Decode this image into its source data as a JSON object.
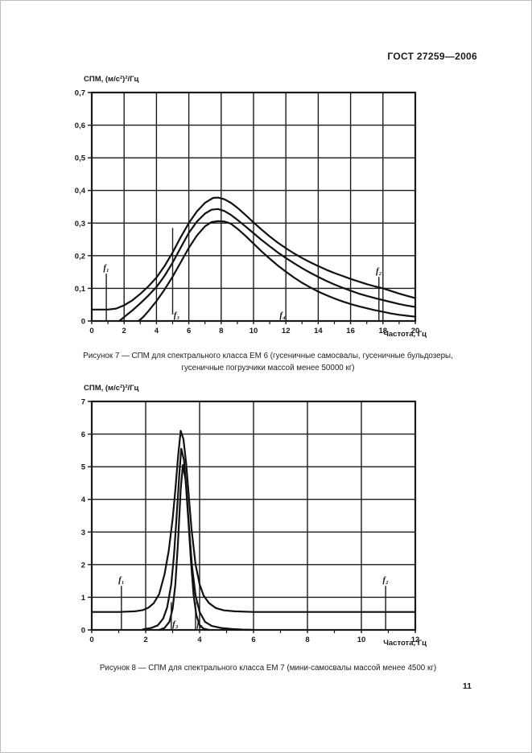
{
  "page": {
    "header": "ГОСТ 27259—2006",
    "page_number": "11"
  },
  "figures": [
    {
      "caption_line1": "Рисунок 7 — СПМ для спектрального класса ЕМ 6 (гусеничные самосвалы, гусеничные бульдозеры,",
      "caption_line2": "гусеничные погрузчики массой менее 50000 кг)"
    },
    {
      "caption": "Рисунок 8 — СПМ для спектрального класса ЕМ 7 (мини-самосвалы массой менее 4500 кг)"
    }
  ],
  "chart_data": [
    {
      "type": "line",
      "title": "Рисунок 7 — СПМ для спектрального класса ЕМ 6",
      "ylabel": "СПМ, (м/с²)²/Гц",
      "xlabel": "Частота, Гц",
      "xlim": [
        0,
        20
      ],
      "ylim": [
        0,
        0.7
      ],
      "grid": true,
      "line_color": "#1a1a1a",
      "xticks": {
        "values": [
          0,
          2,
          4,
          6,
          8,
          10,
          12,
          14,
          16,
          18,
          20
        ],
        "labels": [
          "0",
          "2",
          "4",
          "6",
          "8",
          "10",
          "12",
          "14",
          "16",
          "18",
          "20"
        ]
      },
      "yticks": {
        "values": [
          0,
          0.1,
          0.2,
          0.3,
          0.4,
          0.5,
          0.6,
          0.7
        ],
        "labels": [
          "0",
          "0,1",
          "0,2",
          "0,3",
          "0,4",
          "0,5",
          "0,6",
          "0,7"
        ]
      },
      "xminor": [
        1,
        3,
        5,
        7,
        9,
        11,
        13,
        15,
        17,
        19
      ],
      "series": [
        {
          "name": "upper",
          "points": [
            [
              0,
              0.035
            ],
            [
              1,
              0.035
            ],
            [
              1.5,
              0.038
            ],
            [
              2,
              0.048
            ],
            [
              2.5,
              0.063
            ],
            [
              3,
              0.083
            ],
            [
              3.5,
              0.106
            ],
            [
              4,
              0.133
            ],
            [
              4.5,
              0.168
            ],
            [
              5,
              0.21
            ],
            [
              5.5,
              0.257
            ],
            [
              6,
              0.3
            ],
            [
              6.5,
              0.336
            ],
            [
              7,
              0.362
            ],
            [
              7.5,
              0.377
            ],
            [
              7.8,
              0.378
            ],
            [
              8.2,
              0.373
            ],
            [
              8.6,
              0.362
            ],
            [
              9,
              0.347
            ],
            [
              9.5,
              0.325
            ],
            [
              10,
              0.302
            ],
            [
              10.5,
              0.28
            ],
            [
              11,
              0.259
            ],
            [
              11.5,
              0.24
            ],
            [
              12,
              0.223
            ],
            [
              12.5,
              0.207
            ],
            [
              13,
              0.193
            ],
            [
              13.5,
              0.18
            ],
            [
              14,
              0.168
            ],
            [
              14.5,
              0.157
            ],
            [
              15,
              0.147
            ],
            [
              15.5,
              0.138
            ],
            [
              16,
              0.129
            ],
            [
              16.5,
              0.121
            ],
            [
              17,
              0.113
            ],
            [
              17.5,
              0.106
            ],
            [
              18,
              0.1
            ],
            [
              18.5,
              0.092
            ],
            [
              19,
              0.084
            ],
            [
              19.5,
              0.077
            ],
            [
              20,
              0.07
            ]
          ]
        },
        {
          "name": "middle",
          "points": [
            [
              1.7,
              0
            ],
            [
              2,
              0.012
            ],
            [
              2.5,
              0.032
            ],
            [
              3,
              0.054
            ],
            [
              3.5,
              0.078
            ],
            [
              4,
              0.104
            ],
            [
              4.5,
              0.138
            ],
            [
              5,
              0.179
            ],
            [
              5.5,
              0.225
            ],
            [
              6,
              0.27
            ],
            [
              6.5,
              0.305
            ],
            [
              7,
              0.329
            ],
            [
              7.4,
              0.341
            ],
            [
              7.8,
              0.343
            ],
            [
              8.2,
              0.337
            ],
            [
              8.6,
              0.325
            ],
            [
              9,
              0.31
            ],
            [
              9.5,
              0.29
            ],
            [
              10,
              0.269
            ],
            [
              10.5,
              0.248
            ],
            [
              11,
              0.229
            ],
            [
              11.5,
              0.21
            ],
            [
              12,
              0.193
            ],
            [
              12.5,
              0.177
            ],
            [
              13,
              0.162
            ],
            [
              13.5,
              0.148
            ],
            [
              14,
              0.135
            ],
            [
              14.5,
              0.123
            ],
            [
              15,
              0.112
            ],
            [
              15.5,
              0.102
            ],
            [
              16,
              0.093
            ],
            [
              16.5,
              0.084
            ],
            [
              17,
              0.077
            ],
            [
              17.5,
              0.07
            ],
            [
              18,
              0.064
            ],
            [
              18.5,
              0.058
            ],
            [
              19,
              0.052
            ],
            [
              19.5,
              0.047
            ],
            [
              20,
              0.043
            ]
          ]
        },
        {
          "name": "lower",
          "points": [
            [
              2.9,
              0
            ],
            [
              3.2,
              0.013
            ],
            [
              3.5,
              0.03
            ],
            [
              4,
              0.061
            ],
            [
              4.5,
              0.096
            ],
            [
              5,
              0.136
            ],
            [
              5.5,
              0.18
            ],
            [
              6,
              0.224
            ],
            [
              6.5,
              0.262
            ],
            [
              7,
              0.29
            ],
            [
              7.4,
              0.303
            ],
            [
              7.8,
              0.306
            ],
            [
              8.2,
              0.305
            ],
            [
              8.6,
              0.298
            ],
            [
              9,
              0.283
            ],
            [
              9.5,
              0.261
            ],
            [
              10,
              0.237
            ],
            [
              10.5,
              0.213
            ],
            [
              11,
              0.191
            ],
            [
              11.5,
              0.17
            ],
            [
              12,
              0.151
            ],
            [
              12.5,
              0.133
            ],
            [
              13,
              0.117
            ],
            [
              13.5,
              0.103
            ],
            [
              14,
              0.09
            ],
            [
              14.5,
              0.079
            ],
            [
              15,
              0.069
            ],
            [
              15.5,
              0.06
            ],
            [
              16,
              0.052
            ],
            [
              16.5,
              0.045
            ],
            [
              17,
              0.039
            ],
            [
              17.5,
              0.033
            ],
            [
              18,
              0.028
            ],
            [
              18.5,
              0.023
            ],
            [
              19,
              0.019
            ],
            [
              19.5,
              0.016
            ],
            [
              20,
              0.013
            ]
          ]
        }
      ],
      "markers": [
        {
          "label": "f₁",
          "x": 0.9,
          "y1": 0,
          "y2": 0.145,
          "label_pos": "top",
          "label_dx": 0
        },
        {
          "label": "f₂",
          "x": 17.75,
          "y1": 0,
          "y2": 0.135,
          "label_pos": "top",
          "label_dx": 0
        },
        {
          "label": "f₃",
          "x": 5.0,
          "y1": 0.02,
          "y2": 0.285,
          "label_pos": "base",
          "label_dx": 5
        },
        {
          "label": "f₄",
          "x": 11.8,
          "y1": 0,
          "y2": 0,
          "label_pos": "base",
          "label_dx": 0
        }
      ]
    },
    {
      "type": "line",
      "title": "Рисунок 8 — СПМ для спектрального класса ЕМ 7",
      "ylabel": "СПМ, (м/с²)²/Гц",
      "xlabel": "Частота, Гц",
      "xlim": [
        0,
        12
      ],
      "ylim": [
        0,
        7
      ],
      "grid": true,
      "line_color": "#1a1a1a",
      "xticks": {
        "values": [
          0,
          2,
          4,
          6,
          8,
          10,
          12
        ],
        "labels": [
          "0",
          "2",
          "4",
          "6",
          "8",
          "10",
          "12"
        ]
      },
      "yticks": {
        "values": [
          0,
          1,
          2,
          3,
          4,
          5,
          6,
          7
        ],
        "labels": [
          "0",
          "1",
          "2",
          "3",
          "4",
          "5",
          "6",
          "7"
        ]
      },
      "xminor": [
        1,
        3,
        5,
        7,
        9,
        11
      ],
      "series": [
        {
          "name": "upper",
          "points": [
            [
              0,
              0.55
            ],
            [
              1,
              0.55
            ],
            [
              1.6,
              0.57
            ],
            [
              1.9,
              0.61
            ],
            [
              2.1,
              0.68
            ],
            [
              2.3,
              0.82
            ],
            [
              2.5,
              1.1
            ],
            [
              2.7,
              1.7
            ],
            [
              2.85,
              2.4
            ],
            [
              3,
              3.4
            ],
            [
              3.1,
              4.3
            ],
            [
              3.2,
              5.3
            ],
            [
              3.3,
              6.1
            ],
            [
              3.4,
              5.85
            ],
            [
              3.5,
              5.1
            ],
            [
              3.6,
              4.1
            ],
            [
              3.7,
              3.1
            ],
            [
              3.85,
              2.0
            ],
            [
              4,
              1.4
            ],
            [
              4.15,
              1.05
            ],
            [
              4.35,
              0.82
            ],
            [
              4.6,
              0.67
            ],
            [
              4.9,
              0.6
            ],
            [
              5.3,
              0.57
            ],
            [
              6,
              0.55
            ],
            [
              8,
              0.55
            ],
            [
              10,
              0.55
            ],
            [
              12,
              0.55
            ]
          ]
        },
        {
          "name": "middle",
          "points": [
            [
              1.9,
              0.02
            ],
            [
              2.2,
              0.06
            ],
            [
              2.45,
              0.14
            ],
            [
              2.65,
              0.35
            ],
            [
              2.8,
              0.7
            ],
            [
              2.95,
              1.4
            ],
            [
              3.05,
              2.3
            ],
            [
              3.15,
              3.5
            ],
            [
              3.25,
              4.8
            ],
            [
              3.32,
              5.55
            ],
            [
              3.42,
              5.2
            ],
            [
              3.52,
              4.2
            ],
            [
              3.62,
              3.0
            ],
            [
              3.72,
              1.95
            ],
            [
              3.85,
              1.05
            ],
            [
              4,
              0.55
            ],
            [
              4.2,
              0.25
            ],
            [
              4.45,
              0.12
            ],
            [
              4.8,
              0.06
            ],
            [
              5.2,
              0.03
            ],
            [
              5.6,
              0.01
            ],
            [
              6,
              0
            ]
          ]
        },
        {
          "name": "lower",
          "points": [
            [
              2.5,
              0
            ],
            [
              2.7,
              0.06
            ],
            [
              2.88,
              0.25
            ],
            [
              3,
              0.65
            ],
            [
              3.1,
              1.4
            ],
            [
              3.2,
              2.7
            ],
            [
              3.3,
              4.3
            ],
            [
              3.38,
              5.05
            ],
            [
              3.48,
              4.6
            ],
            [
              3.58,
              3.4
            ],
            [
              3.68,
              2.1
            ],
            [
              3.78,
              1.05
            ],
            [
              3.88,
              0.45
            ],
            [
              4,
              0.15
            ],
            [
              4.15,
              0.04
            ],
            [
              4.35,
              0
            ]
          ]
        }
      ],
      "markers": [
        {
          "label": "f₁",
          "x": 1.1,
          "y1": 0,
          "y2": 1.35,
          "label_pos": "top",
          "label_dx": 0
        },
        {
          "label": "f₂",
          "x": 10.9,
          "y1": 0,
          "y2": 1.35,
          "label_pos": "top",
          "label_dx": 0
        },
        {
          "label": "f₃",
          "x": 2.95,
          "y1": 0,
          "y2": 0.85,
          "label_pos": "base",
          "label_dx": 5
        },
        {
          "label": "f₄",
          "x": 3.85,
          "y1": 0,
          "y2": 0.85,
          "label_pos": "base",
          "label_dx": 5
        }
      ]
    }
  ]
}
